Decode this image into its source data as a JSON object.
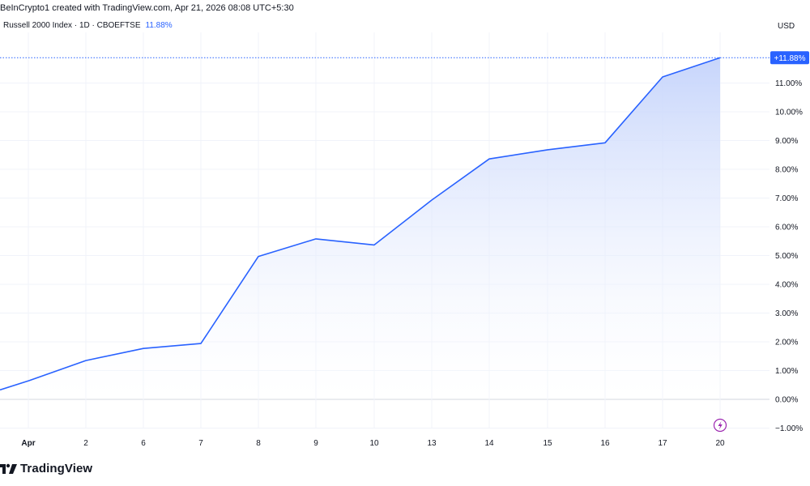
{
  "header": {
    "attribution": "BeInCrypto1 created with TradingView.com, Apr 21, 2026 08:08 UTC+5:30"
  },
  "legend": {
    "symbol": "Russell 2000 Index · 1D · CBOEFTSE",
    "value": "11.88%"
  },
  "axis": {
    "currency": "USD"
  },
  "last_value_badge": "+11.88%",
  "footer": {
    "brand": "TradingView"
  },
  "colors": {
    "line": "#2962ff",
    "area_top": "#c4d3fb",
    "area_bottom": "#ffffff",
    "grid": "#f0f3fa",
    "zero_line": "#d1d4dc",
    "badge": "#2962ff",
    "event_icon": "#9c27b0"
  },
  "event_icon": "lightning-icon",
  "chart_data": {
    "type": "area",
    "title": "Russell 2000 Index · 1D · CBOEFTSE",
    "xlabel": "",
    "ylabel": "",
    "ylim": [
      -1.0,
      12.0
    ],
    "yticks": [
      "−1.00%",
      "0.00%",
      "1.00%",
      "2.00%",
      "3.00%",
      "4.00%",
      "5.00%",
      "6.00%",
      "7.00%",
      "8.00%",
      "9.00%",
      "10.00%",
      "11.00%"
    ],
    "xticks": [
      "Apr",
      "2",
      "6",
      "7",
      "8",
      "9",
      "10",
      "13",
      "14",
      "15",
      "16",
      "17",
      "20"
    ],
    "x": [
      "Mar 31",
      "Apr 1",
      "Apr 2",
      "Apr 6",
      "Apr 7",
      "Apr 8",
      "Apr 9",
      "Apr 10",
      "Apr 13",
      "Apr 14",
      "Apr 15",
      "Apr 16",
      "Apr 17",
      "Apr 20"
    ],
    "values": [
      0.33,
      0.65,
      1.35,
      1.77,
      1.94,
      4.97,
      5.58,
      5.37,
      6.93,
      8.36,
      8.68,
      8.92,
      11.21,
      11.88
    ],
    "grid": true,
    "zero_line": true,
    "legend": "top-left"
  }
}
